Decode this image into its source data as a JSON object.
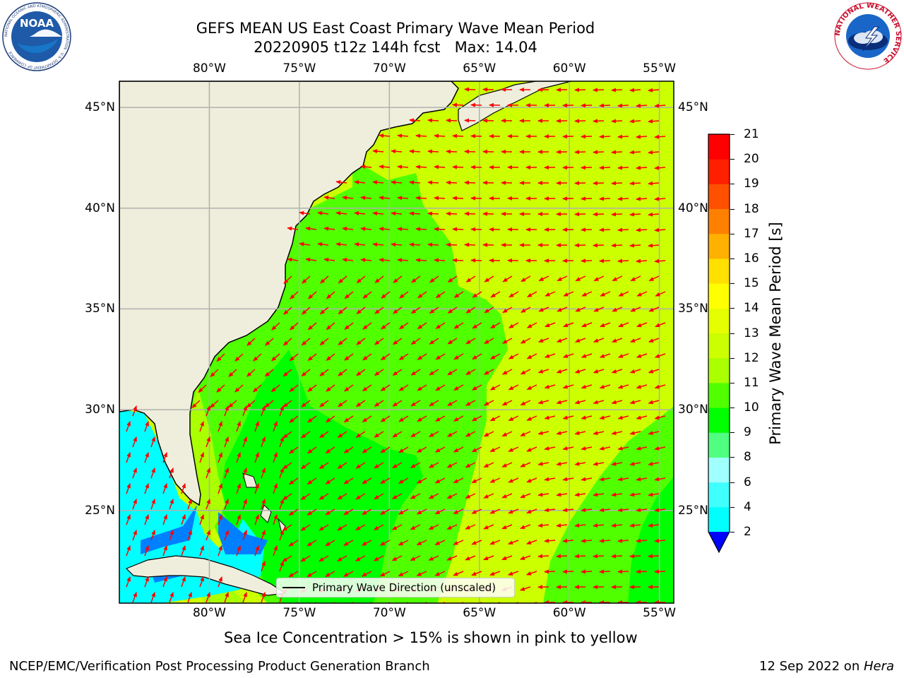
{
  "title": {
    "line1": "GEFS MEAN US East Coast Primary Wave Mean Period",
    "line2": "20220905 t12z 144h fcst   Max: 14.04"
  },
  "map": {
    "lon_ticks_top": [
      "80°W",
      "75°W",
      "70°W",
      "65°W",
      "60°W",
      "55°W"
    ],
    "lon_ticks_bottom": [
      "80°W",
      "75°W",
      "70°W",
      "65°W",
      "60°W",
      "55°W"
    ],
    "lat_ticks_left": [
      "45°N",
      "40°N",
      "35°N",
      "30°N",
      "25°N"
    ],
    "lat_ticks_right": [
      "45°N",
      "40°N",
      "35°N",
      "30°N",
      "25°N"
    ],
    "lon_range": [
      -85,
      -54.2
    ],
    "lat_range": [
      20.4,
      46.3
    ],
    "legend_label": "Primary Wave Direction (unscaled)",
    "arrow_color": "#ff0000",
    "land_color": "#efeedc"
  },
  "colorbar": {
    "label": "Primary Wave Mean Period [s]",
    "ticks": [
      "2",
      "4",
      "6",
      "8",
      "9",
      "10",
      "11",
      "12",
      "13",
      "14",
      "15",
      "16",
      "17",
      "18",
      "19",
      "20",
      "21"
    ],
    "colors": [
      "#0080ff",
      "#00ffff",
      "#40ffff",
      "#a0ffff",
      "#50ff80",
      "#00ff00",
      "#50ff00",
      "#aaff00",
      "#ccff00",
      "#e6ff00",
      "#ffff00",
      "#ffe000",
      "#ffb000",
      "#ff8000",
      "#ff5000",
      "#ff2000",
      "#ff0000"
    ],
    "under_color": "#0000ff"
  },
  "note": "Sea Ice Concentration > 15% is shown in pink to yellow",
  "footer": {
    "left": "NCEP/EMC/Verification Post Processing Product Generation Branch",
    "date": "12 Sep 2022 on ",
    "host": "Hera"
  },
  "logos": {
    "noaa_text": "NOAA",
    "noaa_ring": "NATIONAL OCEANIC AND ATMOSPHERIC ADMINISTRATION · U.S. DEPARTMENT OF COMMERCE",
    "nws_ring": "NATIONAL WEATHER SERVICE"
  }
}
